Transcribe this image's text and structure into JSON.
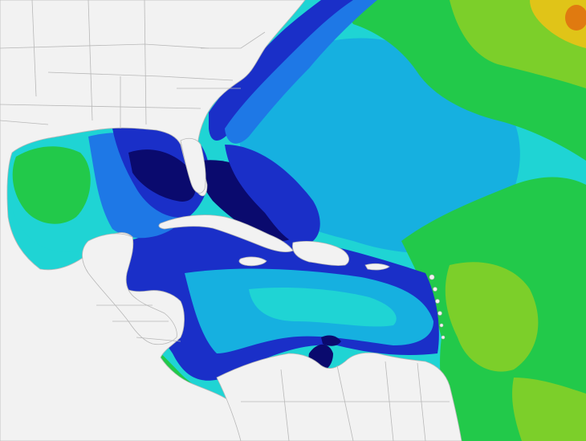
{
  "map": {
    "type": "ocean-swell-field",
    "region": "",
    "colors": {
      "land": "#f2f2f2",
      "land_border": "#b8b8b8",
      "very_low": "#0a0a6e",
      "low": "#1a2fc8",
      "low_mid": "#1e78e6",
      "mid": "#16b0e0",
      "mid_high": "#1fd4d4",
      "high": "#22c94a",
      "higher": "#7ccf2a",
      "peak": "#e0c418",
      "extreme": "#e07a10"
    }
  }
}
